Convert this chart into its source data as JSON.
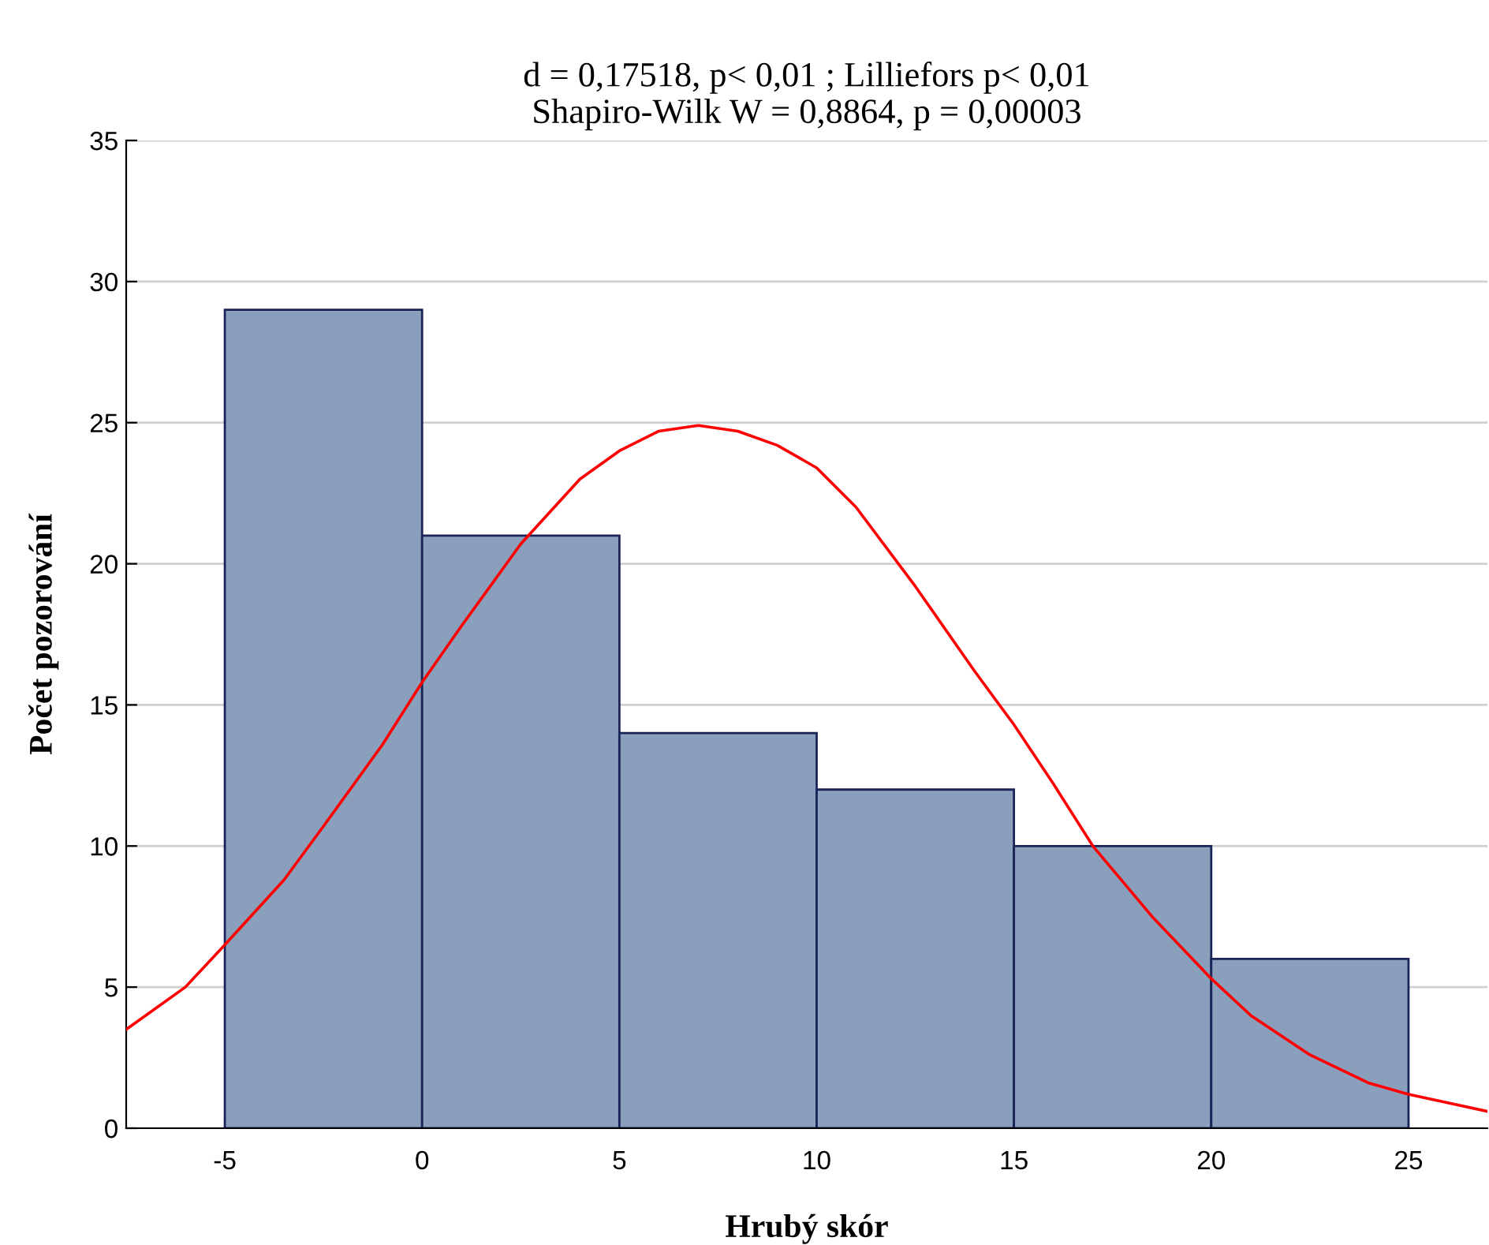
{
  "chart_data": {
    "type": "histogram",
    "title": "d = 0,17518, p< 0,01 ; Lilliefors p< 0,01\nShapiro-Wilk W = 0,8864, p = 0,00003",
    "xlabel": "Hrubý skór",
    "ylabel": "Počet pozorování",
    "series": [
      {
        "bins": [
          -5,
          0,
          5,
          10,
          15,
          20,
          25
        ],
        "values": [
          29,
          21,
          14,
          12,
          10,
          6
        ],
        "color": "#8a9fbb"
      },
      {
        "type": "line",
        "color": "#ff0000",
        "x": [
          -7.5,
          -6,
          -5,
          -3.5,
          -2.5,
          -1,
          0,
          1,
          2.5,
          4,
          5,
          6,
          7,
          8,
          9,
          10,
          11,
          12.5,
          14,
          15,
          16,
          17,
          18.5,
          20,
          21,
          22.5,
          24,
          25,
          27
        ],
        "values": [
          3.5,
          5.0,
          6.5,
          8.8,
          10.7,
          13.6,
          15.8,
          17.8,
          20.7,
          23.0,
          24.0,
          24.7,
          24.9,
          24.7,
          24.2,
          23.4,
          22.0,
          19.2,
          16.2,
          14.3,
          12.2,
          10.0,
          7.5,
          5.3,
          4.0,
          2.6,
          1.6,
          1.2,
          0.6
        ]
      }
    ],
    "xlim": [
      -7.5,
      27
    ],
    "xticks": [
      -5,
      0,
      5,
      10,
      15,
      20,
      25
    ],
    "ylim": [
      0,
      35
    ],
    "yticks": [
      0,
      5,
      10,
      15,
      20,
      25,
      30,
      35
    ],
    "grid": "y",
    "legend": false
  }
}
